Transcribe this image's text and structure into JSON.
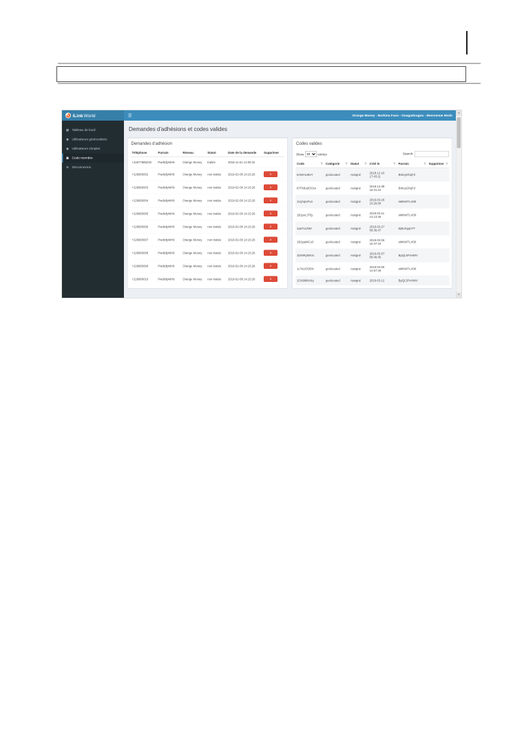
{
  "icon_glyphs": {
    "menu-icon": "☰",
    "dashboard-icon": "▦",
    "users-icon": "◉",
    "member-code-icon": "▣",
    "logout-icon": "⊗",
    "sort-icon": "⇅",
    "scroll-up-icon": "▲",
    "scroll-down-icon": "▼"
  },
  "colors": {
    "navbar": "#3c8dbc",
    "brand_bg": "#367fa9",
    "sidebar_bg": "#222d32",
    "sidebar_active_bg": "#1e282c",
    "content_bg": "#ecf0f5",
    "danger": "#dd4b39",
    "logo_orange": "#ef6c33"
  },
  "app": {
    "brand": {
      "title_bold": "iLink",
      "title_rest": "World"
    },
    "navbar": {
      "user_info": "Orange Money - Burkina Faso - Ouagadougou - Bienvenue Ntolo"
    },
    "sidebar": {
      "items": [
        {
          "label": "Tableau de bord",
          "icon": "dashboard-icon",
          "active": false
        },
        {
          "label": "Utilisateurs géolocalisés",
          "icon": "users-icon",
          "active": false
        },
        {
          "label": "Utilisateurs simples",
          "icon": "users-icon",
          "active": false
        },
        {
          "label": "Code membre",
          "icon": "member-code-icon",
          "active": true
        },
        {
          "label": "Déconnexion",
          "icon": "logout-icon",
          "active": false
        }
      ]
    },
    "page_title": "Demandes d'adhésions et codes valides",
    "left_panel": {
      "title": "Demandes d'adhésion",
      "columns": [
        "Téléphone",
        "Parrain",
        "Réseau",
        "Statut",
        "Date de la demande",
        "Supprimer"
      ],
      "delete_button_label": "x",
      "rows": [
        {
          "telephone": "+22677885230",
          "parrain": "PwdtcfpMH9",
          "reseau": "Orange Money",
          "statut": "traitée",
          "date": "2018-11-01 14:00:32",
          "deletable": false
        },
        {
          "telephone": "+226800002",
          "parrain": "PwdtcfpMH9",
          "reseau": "Orange Money",
          "statut": "non traitée",
          "date": "2019-02-08 14:15:26",
          "deletable": true
        },
        {
          "telephone": "+226800003",
          "parrain": "PwdtcfpMH9",
          "reseau": "Orange Money",
          "statut": "non traitée",
          "date": "2019-02-08 14:15:26",
          "deletable": true
        },
        {
          "telephone": "+226800004",
          "parrain": "PwdtcfpMH9",
          "reseau": "Orange Money",
          "statut": "non traitée",
          "date": "2019-02-08 14:15:26",
          "deletable": true
        },
        {
          "telephone": "+226800005",
          "parrain": "PwdtcfpMH9",
          "reseau": "Orange Money",
          "statut": "non traitée",
          "date": "2019-02-08 14:15:26",
          "deletable": true
        },
        {
          "telephone": "+226800006",
          "parrain": "PwdtcfpMH9",
          "reseau": "Orange Money",
          "statut": "non traitée",
          "date": "2019-02-08 14:15:26",
          "deletable": true
        },
        {
          "telephone": "+226800007",
          "parrain": "PwdtcfpMH9",
          "reseau": "Orange Money",
          "statut": "non traitée",
          "date": "2019-02-08 14:15:26",
          "deletable": true
        },
        {
          "telephone": "+226800008",
          "parrain": "PwdtcfpMH9",
          "reseau": "Orange Money",
          "statut": "non traitée",
          "date": "2019-02-08 14:15:26",
          "deletable": true
        },
        {
          "telephone": "+226800009",
          "parrain": "PwdtcfpMH9",
          "reseau": "Orange Money",
          "statut": "non traitée",
          "date": "2019-02-08 14:15:26",
          "deletable": true
        },
        {
          "telephone": "+226800010",
          "parrain": "PwdtcfpMH9",
          "reseau": "Orange Money",
          "statut": "non traitée",
          "date": "2019-02-08 14:15:26",
          "deletable": true
        }
      ]
    },
    "right_panel": {
      "title": "Codes valides",
      "show_label": "Show",
      "entries_label": "entries",
      "page_size": "10",
      "search_label": "Search:",
      "search_value": "",
      "columns": [
        "Code",
        "Catégorie",
        "Statut",
        "Créé le",
        "Parrain",
        "Supprimer"
      ],
      "rows": [
        {
          "code": "6AWAiUBvY",
          "categorie": "geolocated",
          "statut": "Assigné",
          "cree_le": "2018-12-10 17:43:11",
          "parrain": "BWoyGhqFd"
        },
        {
          "code": "bTFkBudOOcs",
          "categorie": "geolocated",
          "statut": "Assigné",
          "cree_le": "2018-12-08 16:31:24",
          "parrain": "BWoyGhqFd"
        },
        {
          "code": "1UyhqUPu4",
          "categorie": "geolocated",
          "statut": "Assigné",
          "cree_le": "2019-03-26 10:26:08",
          "parrain": "sMNWTL4O8"
        },
        {
          "code": "1B1pxL3Tfg",
          "categorie": "geolocated",
          "statut": "Assigné",
          "cree_le": "2019-03-11 14:13:36",
          "parrain": "sMNWTL4O8"
        },
        {
          "code": "1aaTxo3Wr",
          "categorie": "geolocated",
          "statut": "Assigné",
          "cree_le": "2019-03-27 09:36:47",
          "parrain": "EjBuFgqH7T"
        },
        {
          "code": "1B2yjaMCu3",
          "categorie": "geolocated",
          "statut": "Assigné",
          "cree_le": "2019-03-06 15:37:34",
          "parrain": "sMNWTL4O8"
        },
        {
          "code": "1brMRytWVu",
          "categorie": "geolocated",
          "statut": "Assigné",
          "cree_le": "2019-03-07 08:46:45",
          "parrain": "BpQL5PxHWV"
        },
        {
          "code": "1c7sUO5EiN",
          "categorie": "geolocated",
          "statut": "Assigné",
          "cree_le": "2019-03-05 14:57:46",
          "parrain": "sMNWTL4O8"
        },
        {
          "code": "1CN9MbXKp",
          "categorie": "geolocated",
          "statut": "Assigné",
          "cree_le": "2019-03-12",
          "parrain": "BpQL5PxHWV"
        }
      ]
    }
  }
}
